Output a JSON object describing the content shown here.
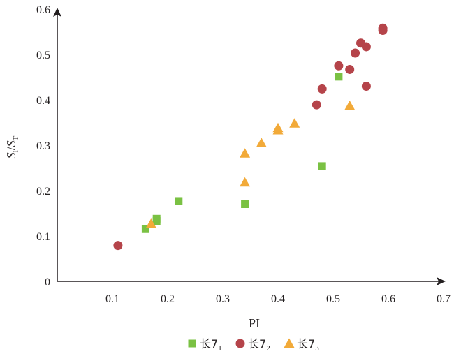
{
  "chart_data": {
    "type": "scatter",
    "title": "",
    "xlabel": "PI",
    "ylabel": {
      "base": "S",
      "sub1": "l",
      "sep": "/",
      "base2": "S",
      "sub2": "T"
    },
    "xlim": [
      0,
      0.7
    ],
    "ylim": [
      0,
      0.6
    ],
    "xticks": [
      "0.1",
      "0.2",
      "0.3",
      "0.4",
      "0.5",
      "0.6",
      "0.7"
    ],
    "yticks": [
      "0",
      "0.1",
      "0.2",
      "0.3",
      "0.4",
      "0.5",
      "0.6"
    ],
    "grid": false,
    "legend_position": "bottom-center",
    "series": [
      {
        "name": "长7",
        "name_sub": "1",
        "marker": "square",
        "color": "#7ac143",
        "points": [
          [
            0.16,
            0.115
          ],
          [
            0.18,
            0.133
          ],
          [
            0.18,
            0.138
          ],
          [
            0.22,
            0.177
          ],
          [
            0.34,
            0.17
          ],
          [
            0.48,
            0.254
          ],
          [
            0.51,
            0.451
          ]
        ]
      },
      {
        "name": "长7",
        "name_sub": "2",
        "marker": "circle",
        "color": "#b5444a",
        "points": [
          [
            0.11,
            0.079
          ],
          [
            0.47,
            0.389
          ],
          [
            0.48,
            0.424
          ],
          [
            0.51,
            0.475
          ],
          [
            0.53,
            0.467
          ],
          [
            0.54,
            0.503
          ],
          [
            0.55,
            0.525
          ],
          [
            0.56,
            0.517
          ],
          [
            0.56,
            0.43
          ],
          [
            0.59,
            0.553
          ],
          [
            0.59,
            0.558
          ]
        ]
      },
      {
        "name": "长7",
        "name_sub": "3",
        "marker": "triangle",
        "color": "#f2aa39",
        "points": [
          [
            0.17,
            0.127
          ],
          [
            0.34,
            0.218
          ],
          [
            0.34,
            0.282
          ],
          [
            0.37,
            0.305
          ],
          [
            0.4,
            0.333
          ],
          [
            0.4,
            0.338
          ],
          [
            0.43,
            0.348
          ],
          [
            0.53,
            0.387
          ]
        ]
      }
    ]
  }
}
